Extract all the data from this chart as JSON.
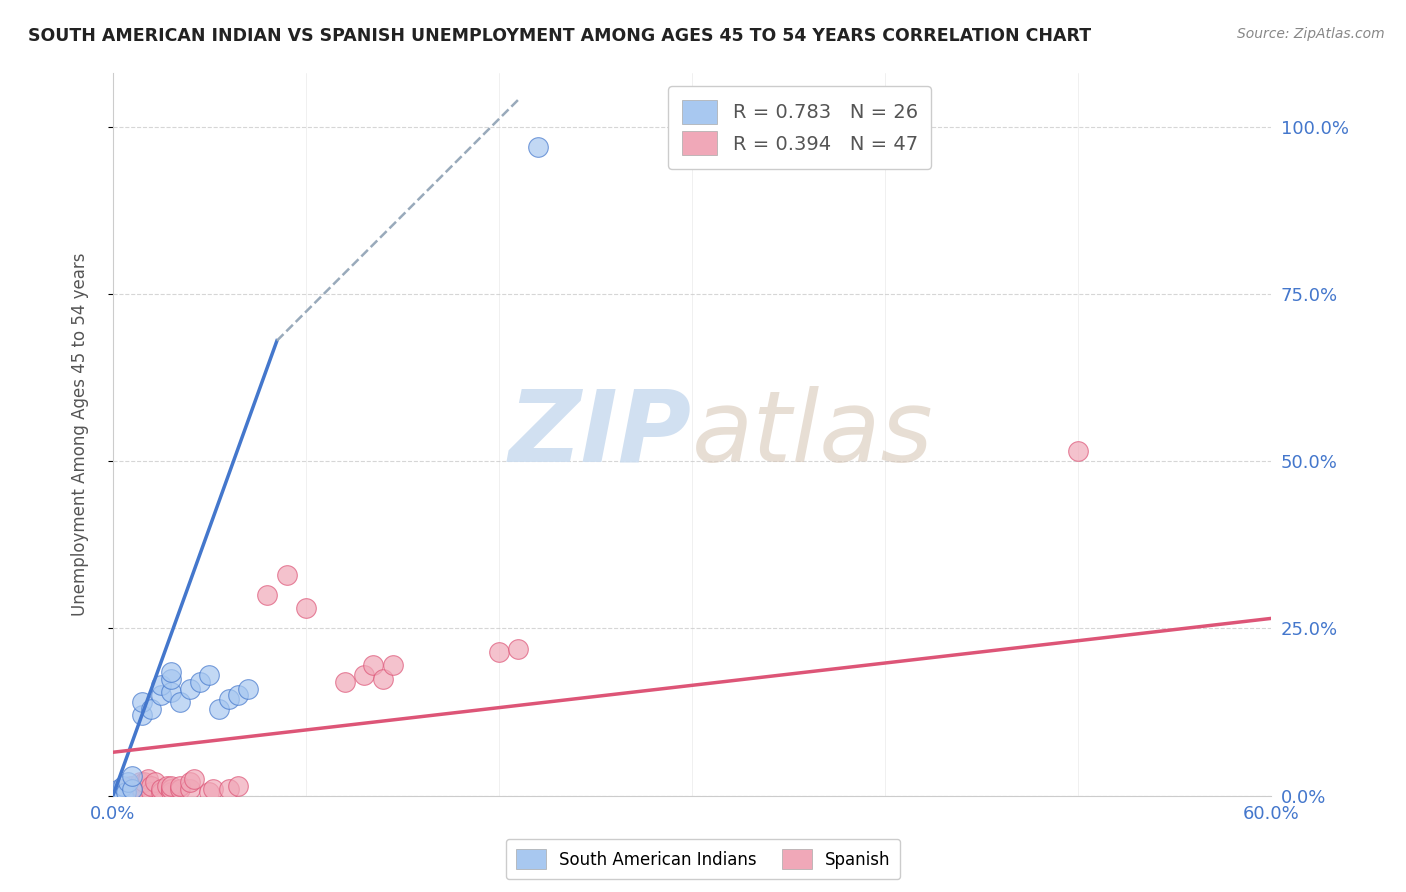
{
  "title": "SOUTH AMERICAN INDIAN VS SPANISH UNEMPLOYMENT AMONG AGES 45 TO 54 YEARS CORRELATION CHART",
  "source": "Source: ZipAtlas.com",
  "ylabel": "Unemployment Among Ages 45 to 54 years",
  "xlim": [
    0,
    0.6
  ],
  "ylim": [
    0,
    1.08
  ],
  "yticks": [
    0,
    0.25,
    0.5,
    0.75,
    1.0
  ],
  "ytick_labels": [
    "0.0%",
    "25.0%",
    "50.0%",
    "75.0%",
    "100.0%"
  ],
  "xtick_left_label": "0.0%",
  "xtick_right_label": "60.0%",
  "blue_R": "0.783",
  "blue_N": "26",
  "pink_R": "0.394",
  "pink_N": "47",
  "blue_color": "#a8c8f0",
  "pink_color": "#f0a8b8",
  "blue_line_color": "#4477cc",
  "pink_line_color": "#dd5577",
  "dashed_line_color": "#99aabb",
  "watermark_color": "#ccddf0",
  "background_color": "#ffffff",
  "grid_color": "#cccccc",
  "blue_scatter": [
    [
      0.0,
      0.0
    ],
    [
      0.002,
      0.005
    ],
    [
      0.003,
      0.01
    ],
    [
      0.005,
      0.0
    ],
    [
      0.005,
      0.015
    ],
    [
      0.007,
      0.005
    ],
    [
      0.008,
      0.02
    ],
    [
      0.01,
      0.01
    ],
    [
      0.01,
      0.03
    ],
    [
      0.015,
      0.12
    ],
    [
      0.015,
      0.14
    ],
    [
      0.02,
      0.13
    ],
    [
      0.025,
      0.15
    ],
    [
      0.025,
      0.165
    ],
    [
      0.03,
      0.155
    ],
    [
      0.03,
      0.175
    ],
    [
      0.03,
      0.185
    ],
    [
      0.035,
      0.14
    ],
    [
      0.04,
      0.16
    ],
    [
      0.045,
      0.17
    ],
    [
      0.05,
      0.18
    ],
    [
      0.055,
      0.13
    ],
    [
      0.06,
      0.145
    ],
    [
      0.065,
      0.15
    ],
    [
      0.07,
      0.16
    ],
    [
      0.22,
      0.97
    ]
  ],
  "pink_scatter": [
    [
      0.0,
      0.0
    ],
    [
      0.002,
      0.005
    ],
    [
      0.003,
      0.0
    ],
    [
      0.004,
      0.01
    ],
    [
      0.005,
      0.005
    ],
    [
      0.006,
      0.01
    ],
    [
      0.007,
      0.005
    ],
    [
      0.008,
      0.01
    ],
    [
      0.009,
      0.015
    ],
    [
      0.01,
      0.0
    ],
    [
      0.01,
      0.01
    ],
    [
      0.01,
      0.015
    ],
    [
      0.012,
      0.01
    ],
    [
      0.013,
      0.015
    ],
    [
      0.014,
      0.02
    ],
    [
      0.015,
      0.01
    ],
    [
      0.016,
      0.02
    ],
    [
      0.018,
      0.025
    ],
    [
      0.02,
      0.005
    ],
    [
      0.02,
      0.015
    ],
    [
      0.022,
      0.02
    ],
    [
      0.025,
      0.005
    ],
    [
      0.025,
      0.01
    ],
    [
      0.028,
      0.015
    ],
    [
      0.03,
      0.005
    ],
    [
      0.03,
      0.01
    ],
    [
      0.03,
      0.015
    ],
    [
      0.035,
      0.01
    ],
    [
      0.035,
      0.015
    ],
    [
      0.04,
      0.01
    ],
    [
      0.04,
      0.02
    ],
    [
      0.042,
      0.025
    ],
    [
      0.05,
      0.005
    ],
    [
      0.052,
      0.01
    ],
    [
      0.06,
      0.01
    ],
    [
      0.065,
      0.015
    ],
    [
      0.08,
      0.3
    ],
    [
      0.09,
      0.33
    ],
    [
      0.1,
      0.28
    ],
    [
      0.12,
      0.17
    ],
    [
      0.13,
      0.18
    ],
    [
      0.135,
      0.195
    ],
    [
      0.14,
      0.175
    ],
    [
      0.145,
      0.195
    ],
    [
      0.2,
      0.215
    ],
    [
      0.21,
      0.22
    ],
    [
      0.5,
      0.515
    ]
  ],
  "blue_trend_x": [
    0.0,
    0.085
  ],
  "blue_trend_y": [
    0.0,
    0.68
  ],
  "dashed_trend_x": [
    0.085,
    0.21
  ],
  "dashed_trend_y": [
    0.68,
    1.04
  ],
  "pink_trend_x": [
    0.0,
    0.6
  ],
  "pink_trend_y": [
    0.065,
    0.265
  ],
  "legend_R_color": "#4477cc",
  "legend_N_color": "#555555",
  "tick_color": "#4477cc",
  "label_color": "#555555"
}
